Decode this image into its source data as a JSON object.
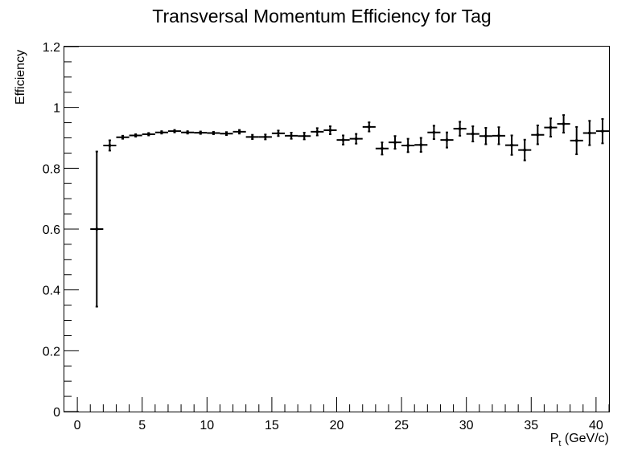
{
  "chart_data": {
    "type": "scatter",
    "title": "Transversal Momentum Efficiency for Tag",
    "xlabel": {
      "main": "P",
      "sub": "t",
      "rest": " (GeV/c)"
    },
    "ylabel": "Efficiency",
    "xlim": [
      -1,
      41
    ],
    "ylim": [
      0,
      1.2
    ],
    "x_ticks": [
      "0",
      "5",
      "10",
      "15",
      "20",
      "25",
      "30",
      "35",
      "40"
    ],
    "y_ticks": [
      "0",
      "0.2",
      "0.4",
      "0.6",
      "0.8",
      "1",
      "1.2"
    ],
    "grid": false,
    "series": [
      {
        "x_halfwidth": 0.5,
        "points": [
          {
            "x": 1.5,
            "y": 0.6,
            "err": 0.255
          },
          {
            "x": 2.5,
            "y": 0.875,
            "err": 0.017
          },
          {
            "x": 3.5,
            "y": 0.902,
            "err": 0.005
          },
          {
            "x": 4.5,
            "y": 0.908,
            "err": 0.004
          },
          {
            "x": 5.5,
            "y": 0.912,
            "err": 0.004
          },
          {
            "x": 6.5,
            "y": 0.918,
            "err": 0.004
          },
          {
            "x": 7.5,
            "y": 0.922,
            "err": 0.004
          },
          {
            "x": 8.5,
            "y": 0.918,
            "err": 0.004
          },
          {
            "x": 9.5,
            "y": 0.917,
            "err": 0.004
          },
          {
            "x": 10.5,
            "y": 0.916,
            "err": 0.004
          },
          {
            "x": 11.5,
            "y": 0.914,
            "err": 0.005
          },
          {
            "x": 12.5,
            "y": 0.92,
            "err": 0.006
          },
          {
            "x": 13.5,
            "y": 0.903,
            "err": 0.007
          },
          {
            "x": 14.5,
            "y": 0.903,
            "err": 0.008
          },
          {
            "x": 15.5,
            "y": 0.915,
            "err": 0.009
          },
          {
            "x": 16.5,
            "y": 0.907,
            "err": 0.01
          },
          {
            "x": 17.5,
            "y": 0.906,
            "err": 0.011
          },
          {
            "x": 18.5,
            "y": 0.92,
            "err": 0.012
          },
          {
            "x": 19.5,
            "y": 0.925,
            "err": 0.013
          },
          {
            "x": 20.5,
            "y": 0.893,
            "err": 0.015
          },
          {
            "x": 21.5,
            "y": 0.897,
            "err": 0.016
          },
          {
            "x": 22.5,
            "y": 0.936,
            "err": 0.015
          },
          {
            "x": 23.5,
            "y": 0.865,
            "err": 0.02
          },
          {
            "x": 24.5,
            "y": 0.885,
            "err": 0.021
          },
          {
            "x": 25.5,
            "y": 0.875,
            "err": 0.022
          },
          {
            "x": 26.5,
            "y": 0.877,
            "err": 0.023
          },
          {
            "x": 27.5,
            "y": 0.918,
            "err": 0.022
          },
          {
            "x": 28.5,
            "y": 0.893,
            "err": 0.025
          },
          {
            "x": 29.5,
            "y": 0.93,
            "err": 0.023
          },
          {
            "x": 30.5,
            "y": 0.913,
            "err": 0.025
          },
          {
            "x": 31.5,
            "y": 0.906,
            "err": 0.027
          },
          {
            "x": 32.5,
            "y": 0.907,
            "err": 0.028
          },
          {
            "x": 33.5,
            "y": 0.876,
            "err": 0.032
          },
          {
            "x": 34.5,
            "y": 0.86,
            "err": 0.034
          },
          {
            "x": 35.5,
            "y": 0.91,
            "err": 0.031
          },
          {
            "x": 36.5,
            "y": 0.934,
            "err": 0.03
          },
          {
            "x": 37.5,
            "y": 0.946,
            "err": 0.029
          },
          {
            "x": 38.5,
            "y": 0.891,
            "err": 0.045
          },
          {
            "x": 39.5,
            "y": 0.916,
            "err": 0.04
          },
          {
            "x": 40.5,
            "y": 0.922,
            "err": 0.04
          }
        ]
      }
    ]
  }
}
